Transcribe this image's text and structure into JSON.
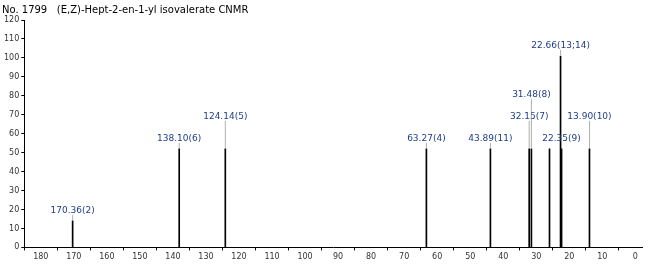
{
  "chart_data": {
    "type": "bar",
    "title": "No. 1799   (E,Z)-Hept-2-en-1-yl isovalerate CNMR",
    "x": [
      170.36,
      138.1,
      124.14,
      63.27,
      43.89,
      32.15,
      31.48,
      26.0,
      22.66,
      22.35,
      13.9
    ],
    "values": [
      14,
      52,
      52,
      52,
      52,
      52,
      52,
      52,
      101,
      52,
      52
    ],
    "peak_labels": [
      "170.36(2)",
      "138.10(6)",
      "124.14(5)",
      "63.27(4)",
      "43.89(11)",
      "32.15(7)",
      "31.48(8)",
      null,
      "22.66(13;14)",
      "22.35(9)",
      "13.90(10)"
    ],
    "color": "#000000",
    "xlim": [
      185,
      -2
    ],
    "xticks": [
      180,
      170,
      160,
      150,
      140,
      130,
      120,
      110,
      100,
      90,
      80,
      70,
      60,
      50,
      40,
      30,
      20,
      10,
      0
    ],
    "ylim": [
      0,
      120
    ],
    "yticks": [
      0,
      10,
      20,
      30,
      40,
      50,
      60,
      70,
      80,
      90,
      100,
      110,
      120
    ],
    "grid": false
  }
}
